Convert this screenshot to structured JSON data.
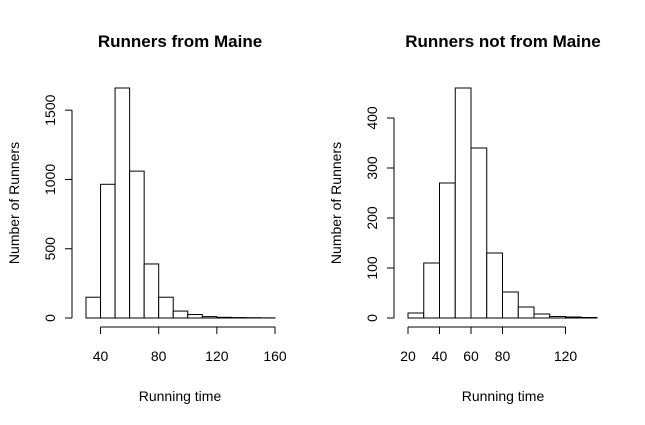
{
  "chart_data": [
    {
      "type": "bar",
      "title": "Runners from Maine",
      "xlabel": "Running time",
      "ylabel": "Number of Runners",
      "bin_edges": [
        30,
        40,
        50,
        60,
        70,
        80,
        90,
        100,
        110,
        120,
        130,
        140,
        150,
        160
      ],
      "values": [
        150,
        965,
        1660,
        1060,
        390,
        150,
        50,
        25,
        10,
        5,
        3,
        2,
        1
      ],
      "xlim": [
        30,
        160
      ],
      "ylim": [
        0,
        1660
      ],
      "x_ticks": [
        40,
        80,
        120,
        160
      ],
      "y_ticks": [
        0,
        500,
        1000,
        1500
      ]
    },
    {
      "type": "bar",
      "title": "Runners not from Maine",
      "xlabel": "Running time",
      "ylabel": "Number of Runners",
      "bin_edges": [
        20,
        30,
        40,
        50,
        60,
        70,
        80,
        90,
        100,
        110,
        120,
        130,
        140
      ],
      "values": [
        10,
        110,
        270,
        460,
        340,
        130,
        52,
        22,
        8,
        3,
        2,
        1
      ],
      "xlim": [
        20,
        140
      ],
      "ylim": [
        0,
        460
      ],
      "x_ticks": [
        20,
        40,
        60,
        80,
        120
      ],
      "y_ticks": [
        0,
        100,
        200,
        300,
        400
      ]
    }
  ]
}
